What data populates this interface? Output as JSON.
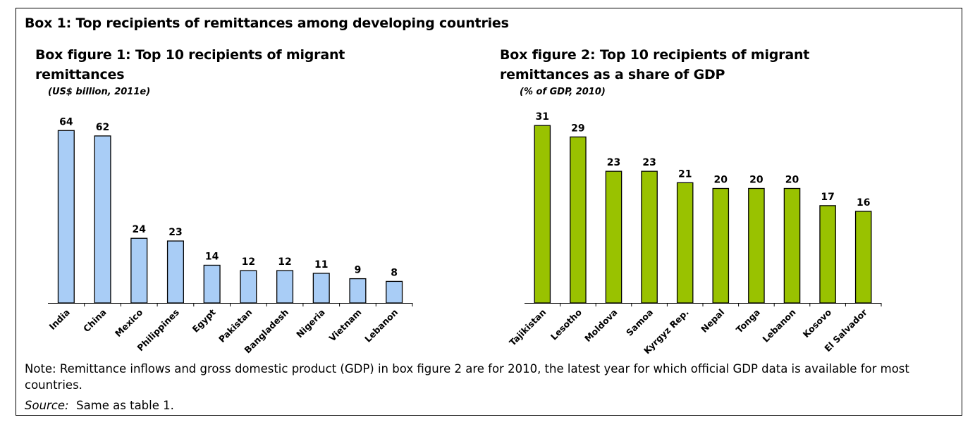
{
  "box": {
    "title": "Box 1: Top recipients of remittances among developing countries",
    "note": "Note: Remittance inflows and gross domestic product (GDP) in box figure 2 are for 2010, the latest year for which official GDP data is available for most countries.",
    "source_label": "Source:",
    "source_text": "Same as table 1."
  },
  "figures": [
    {
      "title_line1": "Box figure 1: Top 10 recipients of migrant",
      "title_line2": "remittances",
      "subtitle": "(US$ billion, 2011e)"
    },
    {
      "title_line1": "Box figure 2: Top 10 recipients of migrant",
      "title_line2": "remittances as a share of GDP",
      "subtitle": "(% of GDP, 2010)"
    }
  ],
  "chart_data": [
    {
      "type": "bar",
      "title": "Box figure 1: Top 10 recipients of migrant remittances",
      "subtitle": "(US$ billion, 2011e)",
      "categories": [
        "India",
        "China",
        "Mexico",
        "Philippines",
        "Egypt",
        "Pakistan",
        "Bangladesh",
        "Nigeria",
        "Vietnam",
        "Lebanon"
      ],
      "values": [
        64,
        62,
        24,
        23,
        14,
        12,
        12,
        11,
        9,
        8
      ],
      "ylim": [
        0,
        68
      ],
      "bar_color": "#a9cdf6",
      "grid": false,
      "data_labels": true
    },
    {
      "type": "bar",
      "title": "Box figure 2: Top 10 recipients of migrant remittances as a share of GDP",
      "subtitle": "(% of GDP, 2010)",
      "categories": [
        "Tajikistan",
        "Lesotho",
        "Moldova",
        "Samoa",
        "Kyrgyz Rep.",
        "Nepal",
        "Tonga",
        "Lebanon",
        "Kosovo",
        "El Salvador"
      ],
      "values": [
        31,
        29,
        23,
        23,
        21,
        20,
        20,
        20,
        17,
        16
      ],
      "ylim": [
        0,
        32
      ],
      "bar_color": "#99c200",
      "grid": false,
      "data_labels": true
    }
  ]
}
